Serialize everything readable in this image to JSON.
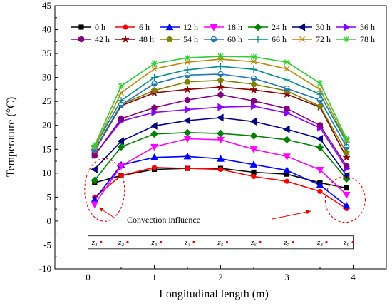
{
  "chart_data": {
    "type": "line",
    "xlabel": "Longitudinal length (m)",
    "ylabel": "Temperature (°C)",
    "xlim": [
      -0.5,
      4.5
    ],
    "ylim": [
      -10,
      45
    ],
    "xticks": [
      0,
      1,
      2,
      3,
      4
    ],
    "yticks": [
      -10,
      -5,
      0,
      5,
      10,
      15,
      20,
      25,
      30,
      35,
      40,
      45
    ],
    "grid": false,
    "legend": "top, 2 rows",
    "x": [
      0.1,
      0.5,
      1.0,
      1.5,
      2.0,
      2.5,
      3.0,
      3.5,
      3.9
    ],
    "series": [
      {
        "name": "0 h",
        "color": "#000000",
        "marker": "square",
        "values": [
          8.0,
          9.5,
          10.8,
          11.0,
          11.0,
          10.2,
          9.8,
          8.0,
          6.9
        ]
      },
      {
        "name": "6 h",
        "color": "#ff0000",
        "marker": "circle",
        "values": [
          5.0,
          9.5,
          11.2,
          11.0,
          10.8,
          9.3,
          8.3,
          6.2,
          2.6
        ]
      },
      {
        "name": "12 h",
        "color": "#0000ff",
        "marker": "triangle-up",
        "values": [
          4.5,
          11.7,
          13.3,
          13.5,
          13.0,
          11.8,
          10.6,
          7.5,
          3.2
        ]
      },
      {
        "name": "18 h",
        "color": "#ff00ff",
        "marker": "triangle-down",
        "values": [
          3.5,
          11.5,
          15.5,
          17.2,
          17.0,
          15.0,
          13.5,
          10.7,
          5.5
        ]
      },
      {
        "name": "24 h",
        "color": "#008000",
        "marker": "diamond",
        "values": [
          8.5,
          15.5,
          18.2,
          18.5,
          18.3,
          17.8,
          17.0,
          15.4,
          8.8
        ]
      },
      {
        "name": "30 h",
        "color": "#000080",
        "marker": "triangle-left",
        "values": [
          10.8,
          16.7,
          19.9,
          21.0,
          21.6,
          20.8,
          19.2,
          17.2,
          9.5
        ]
      },
      {
        "name": "36 h",
        "color": "#8b00ff",
        "marker": "triangle-right",
        "values": [
          13.8,
          20.9,
          22.7,
          23.3,
          23.8,
          24.0,
          22.6,
          19.5,
          11.0
        ]
      },
      {
        "name": "42 h",
        "color": "#800080",
        "marker": "hexagon",
        "values": [
          13.7,
          21.4,
          23.7,
          25.3,
          26.4,
          25.1,
          23.5,
          20.0,
          11.5
        ]
      },
      {
        "name": "48 h",
        "color": "#8b0000",
        "marker": "star",
        "values": [
          14.7,
          24.1,
          26.8,
          27.5,
          28.0,
          27.4,
          26.5,
          23.8,
          13.3
        ]
      },
      {
        "name": "54 h",
        "color": "#808000",
        "marker": "pentagon",
        "values": [
          14.8,
          24.4,
          27.3,
          29.1,
          29.4,
          28.6,
          27.2,
          24.0,
          14.3
        ]
      },
      {
        "name": "60 h",
        "color": "#1f77b4",
        "marker": "circle-half",
        "values": [
          15.0,
          24.3,
          28.7,
          30.5,
          30.7,
          29.8,
          27.7,
          25.3,
          15.5
        ]
      },
      {
        "name": "66 h",
        "color": "#008b8b",
        "marker": "plus",
        "values": [
          15.6,
          25.2,
          30.0,
          31.6,
          32.3,
          31.7,
          29.5,
          26.5,
          16.5
        ]
      },
      {
        "name": "72 h",
        "color": "#b8860b",
        "marker": "x",
        "values": [
          15.4,
          26.8,
          31.8,
          33.2,
          33.8,
          33.3,
          31.8,
          27.5,
          16.8
        ]
      },
      {
        "name": "78 h",
        "color": "#32cd32",
        "marker": "asterisk",
        "values": [
          15.8,
          28.2,
          32.9,
          34.1,
          34.4,
          34.3,
          33.2,
          28.8,
          17.2
        ]
      }
    ],
    "annotations": {
      "convection_text": "Convection influence",
      "z_labels": [
        "z₁",
        "z₂",
        "z₃",
        "z₄",
        "z₅",
        "z₆",
        "z₇",
        "z₈",
        "z₉"
      ]
    }
  }
}
